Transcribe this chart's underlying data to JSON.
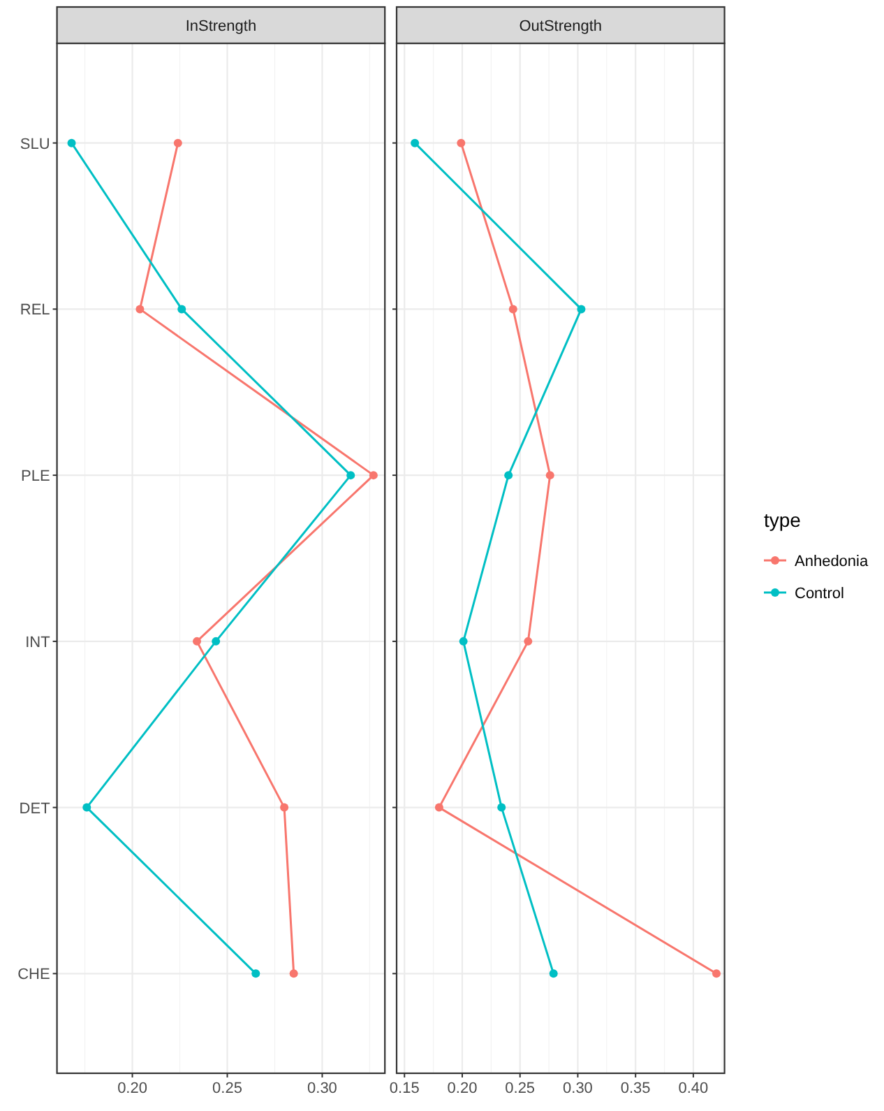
{
  "chart_data": [
    {
      "type": "line",
      "title": "InStrength",
      "orientation": "horizontal",
      "categories": [
        "SLU",
        "REL",
        "PLE",
        "INT",
        "DET",
        "CHE"
      ],
      "xlim": [
        0.1603,
        0.333
      ],
      "xticks": [
        {
          "value": 0.2,
          "label": "0.20"
        },
        {
          "value": 0.25,
          "label": "0.25"
        },
        {
          "value": 0.3,
          "label": "0.30"
        }
      ],
      "grid": true,
      "marker": "circle",
      "legend": "right",
      "legend_title": "type",
      "series": [
        {
          "name": "Anhedonia",
          "color": "#f8766d",
          "values": [
            0.224,
            0.204,
            0.327,
            0.234,
            0.28,
            0.285
          ]
        },
        {
          "name": "Control",
          "color": "#00bfc4",
          "values": [
            0.168,
            0.226,
            0.315,
            0.244,
            0.176,
            0.265
          ]
        }
      ]
    },
    {
      "type": "line",
      "title": "OutStrength",
      "orientation": "horizontal",
      "categories": [
        null,
        null,
        null,
        null,
        null,
        null
      ],
      "xlim": [
        0.1432,
        0.427
      ],
      "xticks": [
        {
          "value": 0.15,
          "label": "0.15"
        },
        {
          "value": 0.2,
          "label": "0.20"
        },
        {
          "value": 0.25,
          "label": "0.25"
        },
        {
          "value": 0.3,
          "label": "0.30"
        },
        {
          "value": 0.35,
          "label": "0.35"
        },
        {
          "value": 0.4,
          "label": "0.40"
        }
      ],
      "grid": true,
      "marker": "circle",
      "series": [
        {
          "color": "#f8766d",
          "values": [
            0.199,
            0.244,
            0.276,
            0.257,
            0.18,
            0.42
          ]
        },
        {
          "color": "#00bfc4",
          "values": [
            0.159,
            0.303,
            0.24,
            0.201,
            0.234,
            0.279
          ]
        }
      ]
    }
  ]
}
